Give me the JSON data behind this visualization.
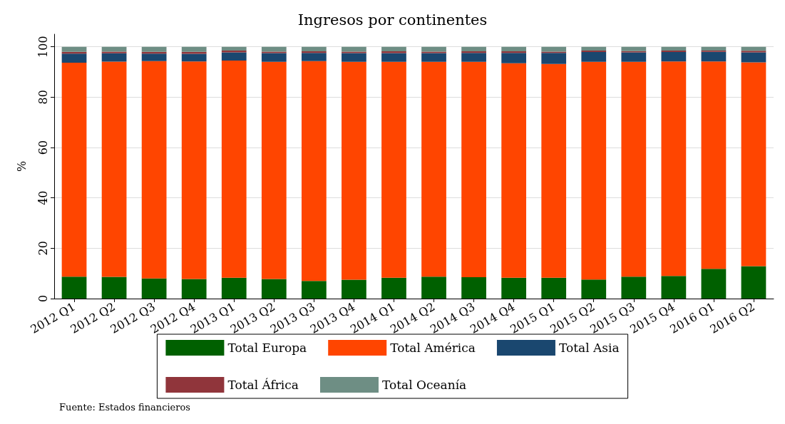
{
  "chart_data": {
    "type": "bar",
    "stacked": true,
    "title": "Ingresos por continentes",
    "ylabel": "%",
    "categories": [
      "2012 Q1",
      "2012 Q2",
      "2012 Q3",
      "2012 Q4",
      "2013 Q1",
      "2013 Q2",
      "2013 Q3",
      "2013 Q4",
      "2014 Q1",
      "2014 Q2",
      "2014 Q3",
      "2014 Q4",
      "2015 Q1",
      "2015 Q2",
      "2015 Q3",
      "2015 Q4",
      "2016 Q1",
      "2016 Q2"
    ],
    "series": [
      {
        "name": "Total Europa",
        "color": "#006000",
        "values": [
          8.7,
          8.6,
          8.0,
          7.8,
          8.3,
          7.8,
          7.0,
          7.5,
          8.3,
          8.7,
          8.5,
          8.3,
          8.3,
          7.6,
          8.7,
          9.0,
          11.8,
          12.9
        ]
      },
      {
        "name": "Total América",
        "color": "#ff4500",
        "values": [
          85.0,
          85.5,
          86.3,
          86.4,
          86.2,
          86.2,
          87.3,
          86.5,
          85.7,
          85.3,
          85.5,
          85.2,
          84.9,
          86.4,
          85.3,
          85.2,
          82.4,
          80.9
        ]
      },
      {
        "name": "Total Asia",
        "color": "#1a476f",
        "values": [
          3.6,
          3.3,
          3.0,
          3.0,
          3.3,
          3.5,
          3.3,
          3.5,
          3.5,
          3.5,
          3.6,
          4.1,
          4.4,
          3.9,
          3.8,
          3.7,
          3.8,
          4.0
        ]
      },
      {
        "name": "Total África",
        "color": "#90353b",
        "values": [
          0.7,
          0.7,
          0.7,
          0.8,
          0.7,
          0.6,
          0.6,
          0.6,
          0.7,
          0.6,
          0.6,
          0.6,
          0.5,
          0.6,
          0.5,
          0.6,
          0.5,
          0.6
        ]
      },
      {
        "name": "Total Oceanía",
        "color": "#6e8e84",
        "values": [
          2.0,
          1.9,
          2.0,
          2.0,
          1.5,
          1.9,
          1.8,
          1.9,
          1.8,
          1.9,
          1.8,
          1.8,
          1.9,
          1.5,
          1.7,
          1.5,
          1.5,
          1.6
        ]
      }
    ],
    "ylim": [
      0,
      105
    ],
    "yticks": [
      0,
      20,
      40,
      60,
      80,
      100
    ],
    "grid": "y",
    "legend": "bottom",
    "annotations": [
      "Fuente: Estados financieros"
    ]
  }
}
